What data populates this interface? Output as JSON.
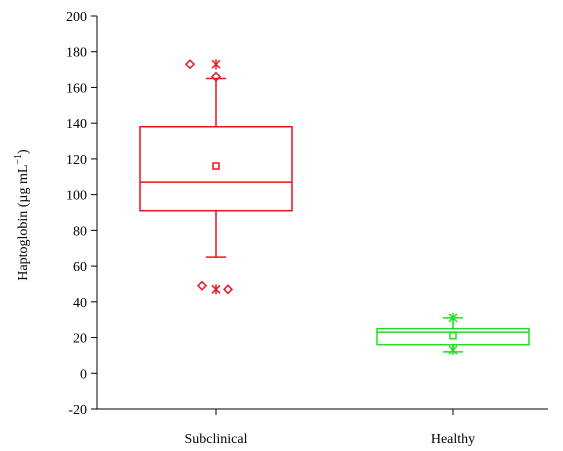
{
  "chart_data": {
    "type": "box",
    "ylabel": "Haptoglobin (µg mL",
    "ylabel_sup": "−1",
    "ylabel_close": ")",
    "ylim": [
      -20,
      200
    ],
    "yticks": [
      -20,
      0,
      20,
      40,
      60,
      80,
      100,
      120,
      140,
      160,
      180,
      200
    ],
    "categories": [
      "Subclinical",
      "Healthy"
    ],
    "grid": false,
    "legend": "none",
    "series": [
      {
        "category": "Subclinical",
        "color": "#e8141e",
        "q1": 91,
        "median": 107,
        "q3": 138,
        "whisker_low": 65,
        "whisker_high": 165,
        "mean": 116,
        "outliers_diamond": [
          173,
          49,
          47
        ],
        "outliers_x": [
          173,
          47
        ],
        "outlier_max_diamond": 166
      },
      {
        "category": "Healthy",
        "color": "#22dd22",
        "q1": 16,
        "median": 23,
        "q3": 25,
        "whisker_low": 12,
        "whisker_high": 31,
        "mean": 21,
        "outliers_x": [
          31,
          13
        ]
      }
    ]
  }
}
